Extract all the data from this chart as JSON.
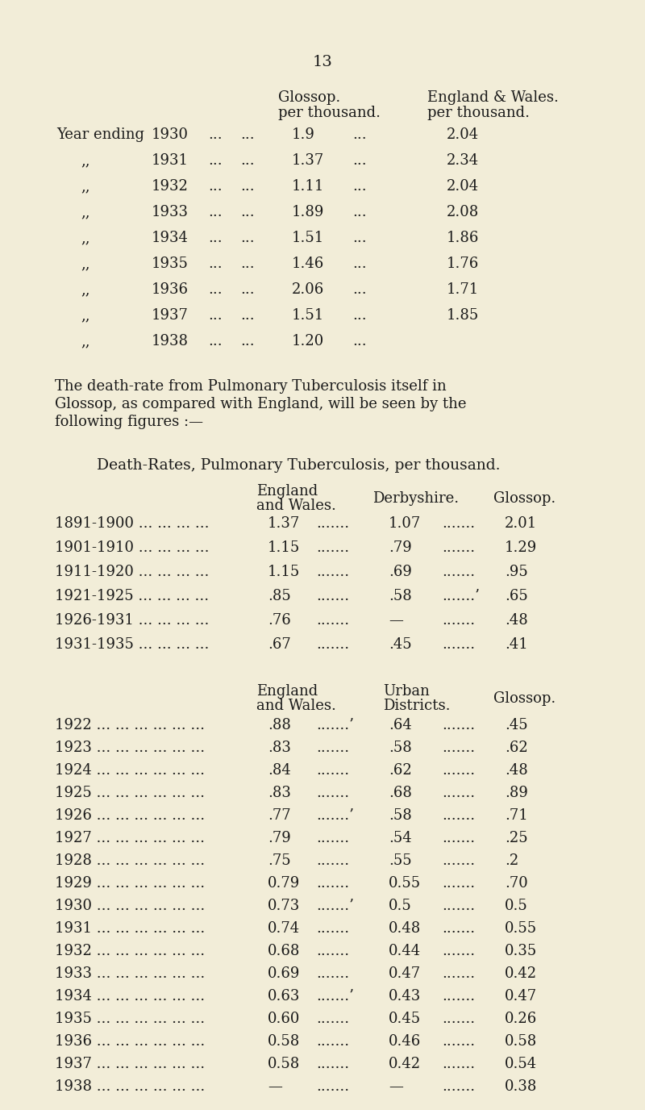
{
  "bg_color": "#f2edd8",
  "text_color": "#1a1a1a",
  "page_number": "13",
  "table1_col1_hdr": [
    "Glossop.",
    "per thousand."
  ],
  "table1_col2_hdr": [
    "England & Wales.",
    "per thousand."
  ],
  "table1_rows": [
    [
      "Year ending",
      "1930",
      "...",
      "...",
      "1.9",
      "...",
      "2.04"
    ],
    [
      ",,",
      "1931",
      "...",
      "...",
      "1.37",
      "...",
      "2.34"
    ],
    [
      ",,",
      "1932",
      "...",
      "...",
      "1.11",
      "...",
      "2.04"
    ],
    [
      ",,",
      "1933",
      "...",
      "...",
      "1.89",
      "...",
      "2.08"
    ],
    [
      ",,",
      "1934",
      "...",
      "...",
      "1.51",
      "...",
      "1.86"
    ],
    [
      ",,",
      "1935",
      "...",
      "...",
      "1.46",
      "...",
      "1.76"
    ],
    [
      ",,",
      "1936",
      "...",
      "...",
      "2.06",
      "...",
      "1.71"
    ],
    [
      ",,",
      "1937",
      "...",
      "...",
      "1.51",
      "...",
      "1.85"
    ],
    [
      ",,",
      "1938",
      "...",
      "...",
      "1.20",
      "...",
      ""
    ]
  ],
  "paragraph_lines": [
    "The death-rate from Pulmonary Tuberculosis itself in",
    "Glossop, as compared with England, will be seen by the",
    "following figures :—"
  ],
  "table2_heading": "Death-Rates, Pulmonary Tuberculosis, per thousand.",
  "table2_rows": [
    [
      "1891-1900 ... ... ... ...",
      "1.37",
      ".......",
      "1.07",
      ".......",
      "2.01"
    ],
    [
      "1901-1910 ... ... ... ...",
      "1.15",
      ".......",
      ".79",
      ".......",
      "1.29"
    ],
    [
      "1911-1920 ... ... ... ...",
      "1.15",
      ".......",
      ".69",
      ".......",
      ".95"
    ],
    [
      "1921-1925 ... ... ... ...",
      ".85",
      ".......",
      ".58",
      ".......’",
      ".65"
    ],
    [
      "1926-1931 ... ... ... ...",
      ".76",
      ".......",
      "—",
      ".......",
      ".48"
    ],
    [
      "1931-1935 ... ... ... ...",
      ".67",
      ".......",
      ".45",
      ".......",
      ".41"
    ]
  ],
  "table3_rows": [
    [
      "1922 ... ... ... ... ... ...",
      ".88",
      ".......’",
      ".64",
      ".......",
      ".45"
    ],
    [
      "1923 ... ... ... ... ... ...",
      ".83",
      ".......",
      ".58",
      ".......",
      ".62"
    ],
    [
      "1924 ... ... ... ... ... ...",
      ".84",
      ".......",
      ".62",
      ".......",
      ".48"
    ],
    [
      "1925 ... ... ... ... ... ...",
      ".83",
      ".......",
      ".68",
      ".......",
      ".89"
    ],
    [
      "1926 ... ... ... ... ... ...",
      ".77",
      ".......’",
      ".58",
      ".......",
      ".71"
    ],
    [
      "1927 ... ... ... ... ... ...",
      ".79",
      ".......",
      ".54",
      ".......",
      ".25"
    ],
    [
      "1928 ... ... ... ... ... ...",
      ".75",
      ".......",
      ".55",
      ".......",
      ".2"
    ],
    [
      "1929 ... ... ... ... ... ...",
      "0.79",
      ".......",
      "0.55",
      ".......",
      ".70"
    ],
    [
      "1930 ... ... ... ... ... ...",
      "0.73",
      ".......’",
      "0.5",
      ".......",
      "0.5"
    ],
    [
      "1931 ... ... ... ... ... ...",
      "0.74",
      ".......",
      "0.48",
      ".......",
      "0.55"
    ],
    [
      "1932 ... ... ... ... ... ...",
      "0.68",
      ".......",
      "0.44",
      ".......",
      "0.35"
    ],
    [
      "1933 ... ... ... ... ... ...",
      "0.69",
      ".......",
      "0.47",
      ".......",
      "0.42"
    ],
    [
      "1934 ... ... ... ... ... ...",
      "0.63",
      ".......’",
      "0.43",
      ".......",
      "0.47"
    ],
    [
      "1935 ... ... ... ... ... ...",
      "0.60",
      ".......",
      "0.45",
      ".......",
      "0.26"
    ],
    [
      "1936 ... ... ... ... ... ...",
      "0.58",
      ".......",
      "0.46",
      ".......",
      "0.58"
    ],
    [
      "1937 ... ... ... ... ... ...",
      "0.58",
      ".......",
      "0.42",
      ".......",
      "0.54"
    ],
    [
      "1938 ... ... ... ... ... ...",
      "—",
      ".......",
      "—",
      ".......",
      "0.38"
    ]
  ]
}
